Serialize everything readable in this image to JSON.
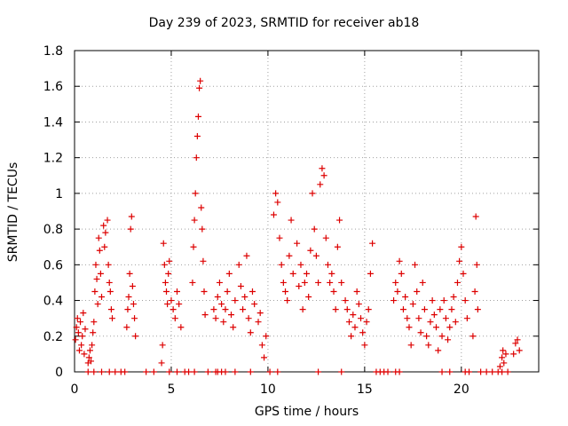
{
  "chart_data": {
    "type": "scatter",
    "title": "Day 239 of 2023, SRMTID for receiver ab18",
    "xlabel": "GPS time / hours",
    "ylabel": "SRMTID / TECUs",
    "xlim": [
      0,
      24
    ],
    "ylim": [
      0,
      1.8
    ],
    "xticks": [
      0,
      5,
      10,
      15,
      20
    ],
    "yticks": [
      0,
      0.2,
      0.4,
      0.6,
      0.8,
      1,
      1.2,
      1.4,
      1.6,
      1.8
    ],
    "xtick_labels": [
      "0",
      "5",
      "10",
      "15",
      "20"
    ],
    "ytick_labels": [
      "0",
      "0.2",
      "0.4",
      "0.6",
      "0.8",
      "1",
      "1.2",
      "1.4",
      "1.6",
      "1.8"
    ],
    "grid": true,
    "marker": "+",
    "color": "#dd0000",
    "series": [
      {
        "name": "SRMTID",
        "points": [
          [
            0.05,
            0.18
          ],
          [
            0.1,
            0.25
          ],
          [
            0.15,
            0.3
          ],
          [
            0.2,
            0.22
          ],
          [
            0.25,
            0.12
          ],
          [
            0.3,
            0.28
          ],
          [
            0.35,
            0.15
          ],
          [
            0.4,
            0.2
          ],
          [
            0.45,
            0.33
          ],
          [
            0.5,
            0.1
          ],
          [
            0.55,
            0.24
          ],
          [
            0.7,
            0.05
          ],
          [
            0.75,
            0.08
          ],
          [
            0.8,
            0.12
          ],
          [
            0.85,
            0.06
          ],
          [
            0.9,
            0.15
          ],
          [
            0.95,
            0.22
          ],
          [
            1.0,
            0.28
          ],
          [
            1.05,
            0.45
          ],
          [
            1.1,
            0.6
          ],
          [
            1.15,
            0.52
          ],
          [
            1.2,
            0.38
          ],
          [
            1.25,
            0.75
          ],
          [
            1.3,
            0.68
          ],
          [
            1.35,
            0.55
          ],
          [
            1.4,
            0.42
          ],
          [
            1.5,
            0.82
          ],
          [
            1.55,
            0.7
          ],
          [
            1.6,
            0.78
          ],
          [
            1.7,
            0.85
          ],
          [
            1.75,
            0.6
          ],
          [
            1.8,
            0.5
          ],
          [
            1.85,
            0.45
          ],
          [
            1.9,
            0.35
          ],
          [
            1.95,
            0.3
          ],
          [
            2.7,
            0.25
          ],
          [
            2.75,
            0.35
          ],
          [
            2.8,
            0.42
          ],
          [
            2.85,
            0.55
          ],
          [
            2.9,
            0.8
          ],
          [
            2.95,
            0.87
          ],
          [
            3.0,
            0.48
          ],
          [
            3.05,
            0.38
          ],
          [
            3.1,
            0.3
          ],
          [
            3.15,
            0.2
          ],
          [
            4.5,
            0.05
          ],
          [
            4.55,
            0.15
          ],
          [
            4.6,
            0.72
          ],
          [
            4.65,
            0.6
          ],
          [
            4.7,
            0.5
          ],
          [
            4.75,
            0.45
          ],
          [
            4.8,
            0.38
          ],
          [
            4.85,
            0.55
          ],
          [
            4.9,
            0.62
          ],
          [
            5.0,
            0.4
          ],
          [
            5.1,
            0.35
          ],
          [
            5.2,
            0.3
          ],
          [
            5.3,
            0.45
          ],
          [
            5.4,
            0.38
          ],
          [
            5.5,
            0.25
          ],
          [
            6.1,
            0.5
          ],
          [
            6.15,
            0.7
          ],
          [
            6.2,
            0.85
          ],
          [
            6.25,
            1.0
          ],
          [
            6.3,
            1.2
          ],
          [
            6.35,
            1.32
          ],
          [
            6.4,
            1.43
          ],
          [
            6.45,
            1.59
          ],
          [
            6.5,
            1.63
          ],
          [
            6.55,
            0.92
          ],
          [
            6.6,
            0.8
          ],
          [
            6.65,
            0.62
          ],
          [
            6.7,
            0.45
          ],
          [
            6.75,
            0.32
          ],
          [
            7.2,
            0.35
          ],
          [
            7.3,
            0.3
          ],
          [
            7.4,
            0.42
          ],
          [
            7.5,
            0.5
          ],
          [
            7.6,
            0.38
          ],
          [
            7.7,
            0.28
          ],
          [
            7.8,
            0.35
          ],
          [
            7.9,
            0.45
          ],
          [
            8.0,
            0.55
          ],
          [
            8.1,
            0.32
          ],
          [
            8.2,
            0.25
          ],
          [
            8.3,
            0.4
          ],
          [
            8.5,
            0.6
          ],
          [
            8.6,
            0.48
          ],
          [
            8.7,
            0.35
          ],
          [
            8.8,
            0.42
          ],
          [
            8.9,
            0.65
          ],
          [
            9.0,
            0.3
          ],
          [
            9.1,
            0.22
          ],
          [
            9.2,
            0.45
          ],
          [
            9.3,
            0.38
          ],
          [
            9.5,
            0.28
          ],
          [
            9.6,
            0.33
          ],
          [
            9.7,
            0.15
          ],
          [
            9.8,
            0.08
          ],
          [
            9.9,
            0.2
          ],
          [
            10.3,
            0.88
          ],
          [
            10.4,
            1.0
          ],
          [
            10.5,
            0.95
          ],
          [
            10.6,
            0.75
          ],
          [
            10.7,
            0.6
          ],
          [
            10.8,
            0.5
          ],
          [
            10.9,
            0.45
          ],
          [
            11.0,
            0.4
          ],
          [
            11.1,
            0.65
          ],
          [
            11.2,
            0.85
          ],
          [
            11.3,
            0.55
          ],
          [
            11.5,
            0.72
          ],
          [
            11.6,
            0.48
          ],
          [
            11.7,
            0.6
          ],
          [
            11.8,
            0.35
          ],
          [
            11.9,
            0.5
          ],
          [
            12.0,
            0.55
          ],
          [
            12.1,
            0.42
          ],
          [
            12.2,
            0.68
          ],
          [
            12.3,
            1.0
          ],
          [
            12.4,
            0.8
          ],
          [
            12.5,
            0.65
          ],
          [
            12.6,
            0.5
          ],
          [
            12.7,
            1.05
          ],
          [
            12.8,
            1.14
          ],
          [
            12.9,
            1.1
          ],
          [
            13.0,
            0.75
          ],
          [
            13.1,
            0.6
          ],
          [
            13.2,
            0.5
          ],
          [
            13.3,
            0.55
          ],
          [
            13.4,
            0.45
          ],
          [
            13.5,
            0.35
          ],
          [
            13.6,
            0.7
          ],
          [
            13.7,
            0.85
          ],
          [
            13.8,
            0.5
          ],
          [
            14.0,
            0.4
          ],
          [
            14.1,
            0.35
          ],
          [
            14.2,
            0.28
          ],
          [
            14.3,
            0.2
          ],
          [
            14.4,
            0.32
          ],
          [
            14.5,
            0.25
          ],
          [
            14.6,
            0.45
          ],
          [
            14.7,
            0.38
          ],
          [
            14.8,
            0.3
          ],
          [
            14.9,
            0.22
          ],
          [
            15.0,
            0.15
          ],
          [
            15.1,
            0.28
          ],
          [
            15.2,
            0.35
          ],
          [
            15.3,
            0.55
          ],
          [
            15.4,
            0.72
          ],
          [
            16.5,
            0.4
          ],
          [
            16.6,
            0.5
          ],
          [
            16.7,
            0.45
          ],
          [
            16.8,
            0.62
          ],
          [
            16.9,
            0.55
          ],
          [
            17.0,
            0.35
          ],
          [
            17.1,
            0.42
          ],
          [
            17.2,
            0.3
          ],
          [
            17.3,
            0.25
          ],
          [
            17.4,
            0.15
          ],
          [
            17.5,
            0.38
          ],
          [
            17.6,
            0.6
          ],
          [
            17.7,
            0.45
          ],
          [
            17.8,
            0.3
          ],
          [
            17.9,
            0.22
          ],
          [
            18.0,
            0.5
          ],
          [
            18.1,
            0.35
          ],
          [
            18.2,
            0.2
          ],
          [
            18.3,
            0.15
          ],
          [
            18.4,
            0.28
          ],
          [
            18.5,
            0.4
          ],
          [
            18.6,
            0.32
          ],
          [
            18.7,
            0.25
          ],
          [
            18.8,
            0.12
          ],
          [
            18.9,
            0.35
          ],
          [
            19.0,
            0.2
          ],
          [
            19.1,
            0.4
          ],
          [
            19.2,
            0.3
          ],
          [
            19.3,
            0.18
          ],
          [
            19.4,
            0.25
          ],
          [
            19.5,
            0.35
          ],
          [
            19.6,
            0.42
          ],
          [
            19.7,
            0.28
          ],
          [
            19.8,
            0.5
          ],
          [
            19.9,
            0.62
          ],
          [
            20.0,
            0.7
          ],
          [
            20.1,
            0.55
          ],
          [
            20.2,
            0.4
          ],
          [
            20.3,
            0.3
          ],
          [
            20.6,
            0.2
          ],
          [
            20.7,
            0.45
          ],
          [
            20.75,
            0.87
          ],
          [
            20.8,
            0.6
          ],
          [
            20.85,
            0.35
          ],
          [
            22.0,
            0.03
          ],
          [
            22.1,
            0.08
          ],
          [
            22.15,
            0.12
          ],
          [
            22.2,
            0.05
          ],
          [
            22.3,
            0.1
          ],
          [
            22.7,
            0.1
          ],
          [
            22.8,
            0.16
          ],
          [
            22.9,
            0.18
          ],
          [
            23.0,
            0.12
          ],
          [
            0.7,
            0.0
          ],
          [
            1.0,
            0.0
          ],
          [
            1.4,
            0.0
          ],
          [
            1.8,
            0.0
          ],
          [
            2.1,
            0.0
          ],
          [
            2.4,
            0.0
          ],
          [
            2.6,
            0.0
          ],
          [
            3.7,
            0.0
          ],
          [
            4.1,
            0.0
          ],
          [
            4.9,
            0.0
          ],
          [
            5.3,
            0.0
          ],
          [
            5.7,
            0.0
          ],
          [
            5.9,
            0.0
          ],
          [
            6.2,
            0.0
          ],
          [
            6.9,
            0.0
          ],
          [
            7.3,
            0.0
          ],
          [
            7.4,
            0.0
          ],
          [
            7.6,
            0.0
          ],
          [
            7.8,
            0.0
          ],
          [
            8.3,
            0.0
          ],
          [
            9.1,
            0.0
          ],
          [
            10.1,
            0.0
          ],
          [
            10.5,
            0.0
          ],
          [
            12.6,
            0.0
          ],
          [
            13.8,
            0.0
          ],
          [
            15.6,
            0.0
          ],
          [
            15.8,
            0.0
          ],
          [
            16.0,
            0.0
          ],
          [
            16.2,
            0.0
          ],
          [
            16.6,
            0.0
          ],
          [
            16.8,
            0.0
          ],
          [
            19.0,
            0.0
          ],
          [
            19.4,
            0.0
          ],
          [
            20.2,
            0.0
          ],
          [
            20.4,
            0.0
          ],
          [
            21.0,
            0.0
          ],
          [
            21.3,
            0.0
          ],
          [
            21.6,
            0.0
          ],
          [
            21.9,
            0.0
          ],
          [
            22.1,
            0.0
          ],
          [
            22.4,
            0.0
          ]
        ]
      }
    ]
  }
}
